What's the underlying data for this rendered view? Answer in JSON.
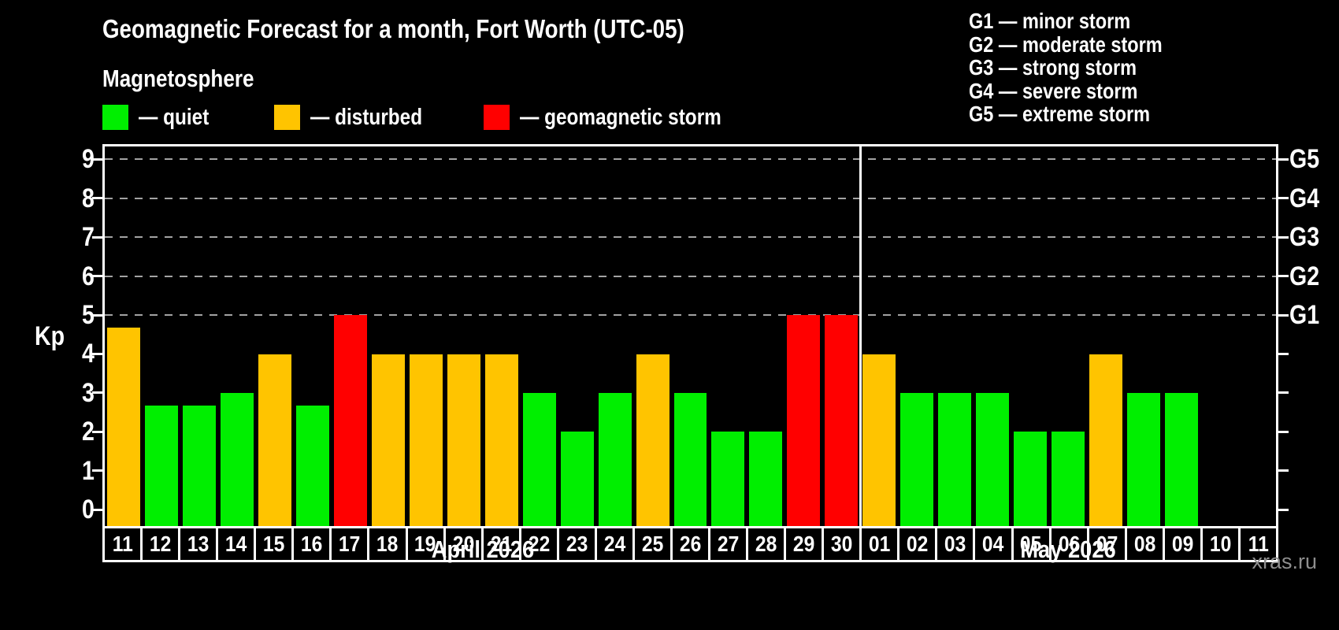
{
  "header": {
    "title": "Geomagnetic Forecast for a month, Fort Worth (UTC-05)",
    "subtitle": "Magnetosphere",
    "legend": [
      {
        "name": "quiet",
        "label": "— quiet",
        "color": "#00ef00"
      },
      {
        "name": "disturbed",
        "label": "— disturbed",
        "color": "#ffc400"
      },
      {
        "name": "storm",
        "label": "— geomagnetic storm",
        "color": "#ff0000"
      }
    ]
  },
  "g_scale_legend": [
    "G1 — minor storm",
    "G2 — moderate storm",
    "G3 — strong storm",
    "G4 — severe storm",
    "G5 — extreme storm"
  ],
  "watermark": "xras.ru",
  "chart_data": {
    "type": "bar",
    "title": "Geomagnetic Forecast for a month, Fort Worth (UTC-05)",
    "ylabel": "Kp",
    "ylim": [
      0,
      9
    ],
    "yticks": [
      0,
      1,
      2,
      3,
      4,
      5,
      6,
      7,
      8,
      9
    ],
    "grid_kp": [
      5,
      6,
      7,
      8,
      9
    ],
    "grid_on": true,
    "right_axis_labels": [
      {
        "kp": 5,
        "label": "G1"
      },
      {
        "kp": 6,
        "label": "G2"
      },
      {
        "kp": 7,
        "label": "G3"
      },
      {
        "kp": 8,
        "label": "G4"
      },
      {
        "kp": 9,
        "label": "G5"
      }
    ],
    "status_colors": {
      "quiet": "#00ef00",
      "disturbed": "#ffc400",
      "storm": "#ff0000"
    },
    "months": [
      {
        "label": "April 2026",
        "days": [
          {
            "day": "11",
            "kp": 4.67,
            "status": "disturbed"
          },
          {
            "day": "12",
            "kp": 2.67,
            "status": "quiet"
          },
          {
            "day": "13",
            "kp": 2.67,
            "status": "quiet"
          },
          {
            "day": "14",
            "kp": 3,
            "status": "quiet"
          },
          {
            "day": "15",
            "kp": 4,
            "status": "disturbed"
          },
          {
            "day": "16",
            "kp": 2.67,
            "status": "quiet"
          },
          {
            "day": "17",
            "kp": 5,
            "status": "storm"
          },
          {
            "day": "18",
            "kp": 4,
            "status": "disturbed"
          },
          {
            "day": "19",
            "kp": 4,
            "status": "disturbed"
          },
          {
            "day": "20",
            "kp": 4,
            "status": "disturbed"
          },
          {
            "day": "21",
            "kp": 4,
            "status": "disturbed"
          },
          {
            "day": "22",
            "kp": 3,
            "status": "quiet"
          },
          {
            "day": "23",
            "kp": 2,
            "status": "quiet"
          },
          {
            "day": "24",
            "kp": 3,
            "status": "quiet"
          },
          {
            "day": "25",
            "kp": 4,
            "status": "disturbed"
          },
          {
            "day": "26",
            "kp": 3,
            "status": "quiet"
          },
          {
            "day": "27",
            "kp": 2,
            "status": "quiet"
          },
          {
            "day": "28",
            "kp": 2,
            "status": "quiet"
          },
          {
            "day": "29",
            "kp": 5,
            "status": "storm"
          },
          {
            "day": "30",
            "kp": 5,
            "status": "storm"
          }
        ]
      },
      {
        "label": "May 2026",
        "days": [
          {
            "day": "01",
            "kp": 4,
            "status": "disturbed"
          },
          {
            "day": "02",
            "kp": 3,
            "status": "quiet"
          },
          {
            "day": "03",
            "kp": 3,
            "status": "quiet"
          },
          {
            "day": "04",
            "kp": 3,
            "status": "quiet"
          },
          {
            "day": "05",
            "kp": 2,
            "status": "quiet"
          },
          {
            "day": "06",
            "kp": 2,
            "status": "quiet"
          },
          {
            "day": "07",
            "kp": 4,
            "status": "disturbed"
          },
          {
            "day": "08",
            "kp": 3,
            "status": "quiet"
          },
          {
            "day": "09",
            "kp": 3,
            "status": "quiet"
          },
          {
            "day": "10",
            "kp": null,
            "status": "none"
          },
          {
            "day": "11",
            "kp": null,
            "status": "none"
          }
        ]
      }
    ]
  }
}
